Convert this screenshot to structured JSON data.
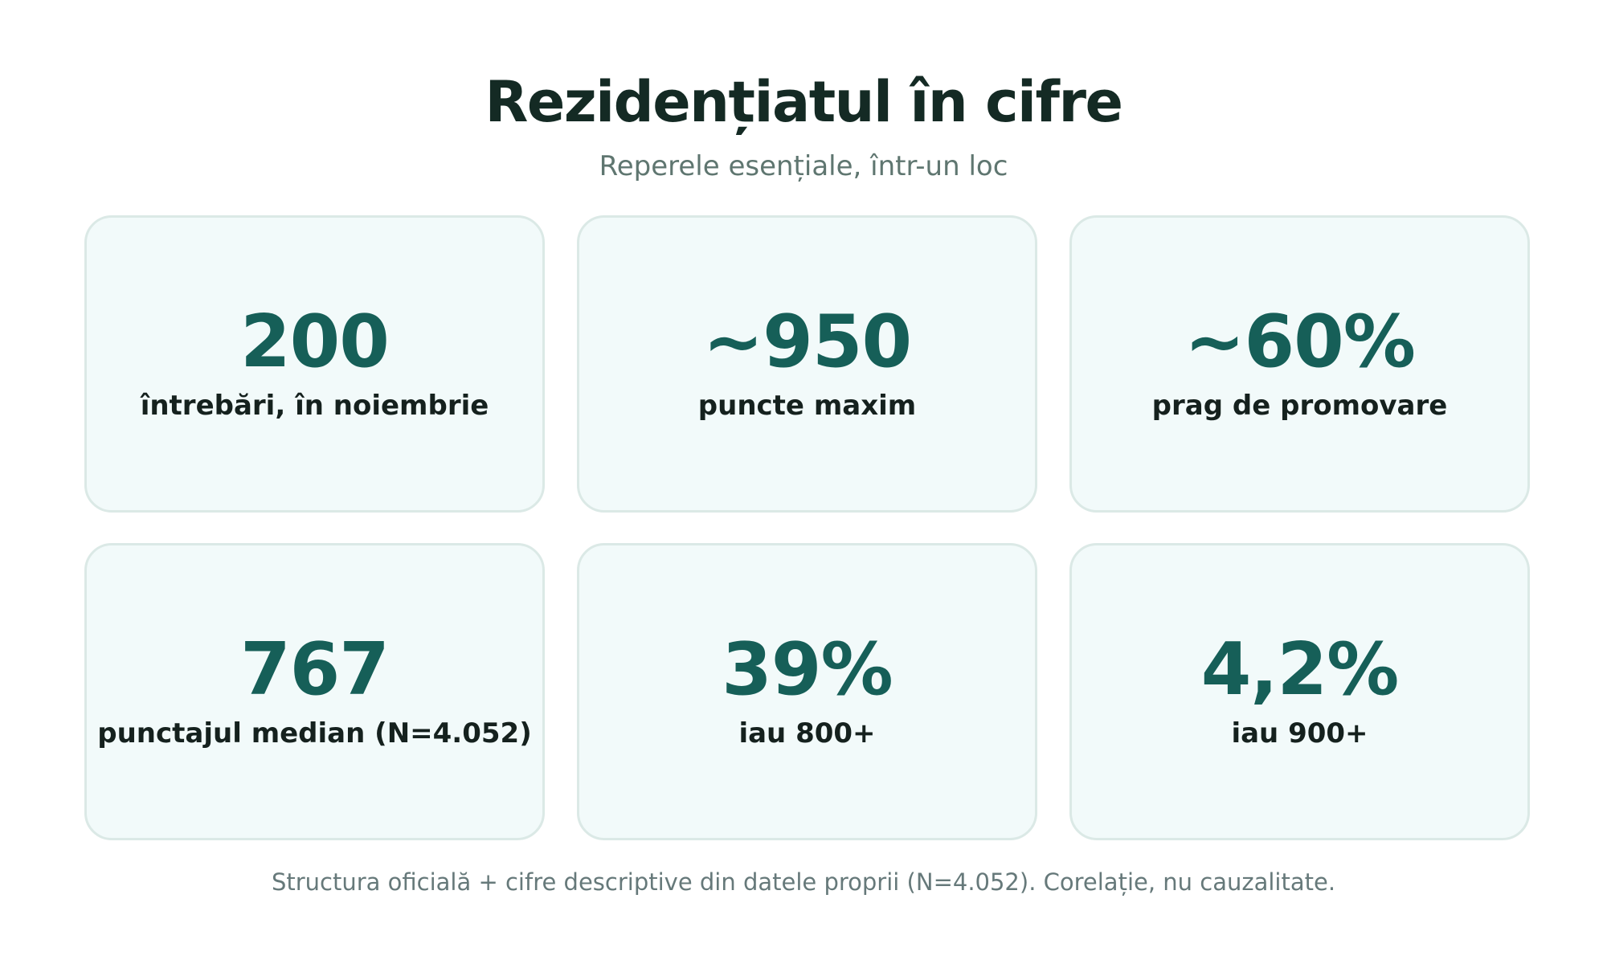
{
  "header": {
    "title": "Rezidențiatul în cifre",
    "subtitle": "Reperele esențiale, într-un loc"
  },
  "stats": [
    {
      "value": "200",
      "label": "întrebări, în noiembrie"
    },
    {
      "value": "~950",
      "label": "puncte maxim"
    },
    {
      "value": "~60%",
      "label": "prag de promovare"
    },
    {
      "value": "767",
      "label": "punctajul median (N=4.052)"
    },
    {
      "value": "39%",
      "label": "iau 800+"
    },
    {
      "value": "4,2%",
      "label": "iau 900+"
    }
  ],
  "footnote": "Structura oficială + cifre descriptive din datele proprii (N=4.052). Corelație, nu cauzalitate.",
  "colors": {
    "accent": "#165f58",
    "card_background": "#f2fafa",
    "card_border": "#dbe9e6",
    "title": "#142a24",
    "muted": "#5f7670"
  }
}
